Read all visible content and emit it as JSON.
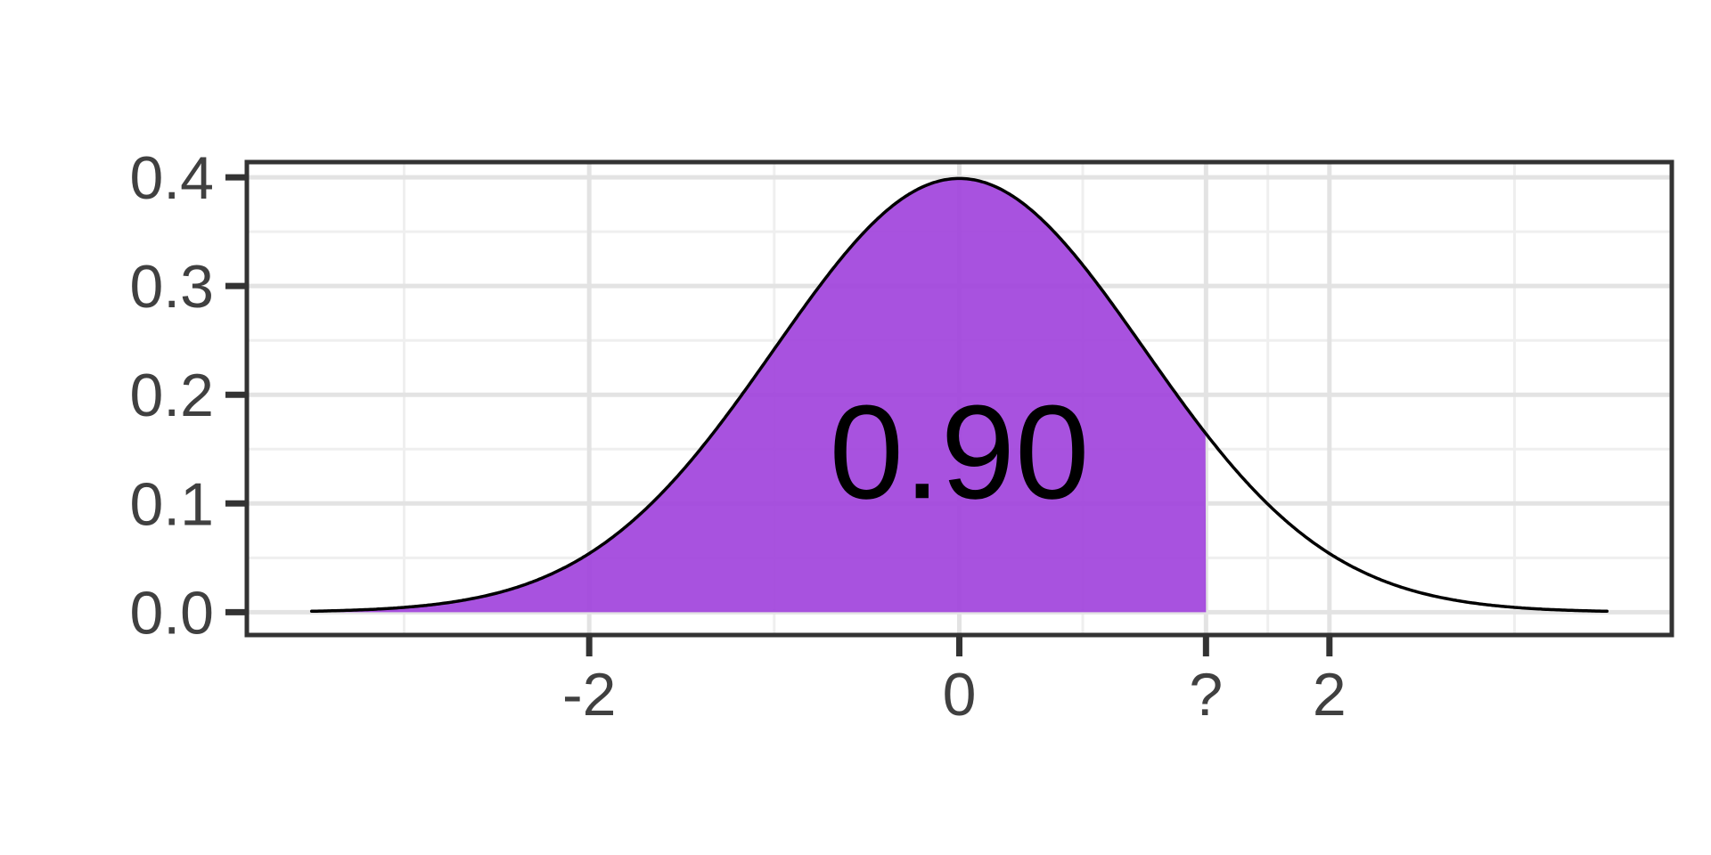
{
  "chart_data": {
    "type": "area",
    "title": "",
    "description": "Standard normal density curve with the lower-tail region shaded up to an unknown quantile marked '?' on the x-axis; shaded area equals 0.90",
    "distribution": {
      "name": "standard-normal",
      "mean": 0,
      "sd": 1,
      "peak_density": 0.3989
    },
    "curve_x_range": [
      -3.5,
      3.5
    ],
    "shaded_region": {
      "x_from": -3.5,
      "x_to": 1.333,
      "probability": 0.9,
      "probability_label": "0.90"
    },
    "annotation": {
      "text": "0.90",
      "x": 0,
      "y": 0.15
    },
    "x_axis": {
      "range": [
        -3.85,
        3.85
      ],
      "ticks": [
        {
          "v": -2,
          "label": "-2"
        },
        {
          "v": 0,
          "label": "0"
        },
        {
          "v": 1.333,
          "label": "?"
        },
        {
          "v": 2,
          "label": "2"
        }
      ],
      "minor_gridlines": [
        -3,
        -1,
        0.667,
        1.667,
        3
      ],
      "label": ""
    },
    "y_axis": {
      "range": [
        -0.021,
        0.414
      ],
      "ticks": [
        {
          "v": 0.0,
          "label": "0.0"
        },
        {
          "v": 0.1,
          "label": "0.1"
        },
        {
          "v": 0.2,
          "label": "0.2"
        },
        {
          "v": 0.3,
          "label": "0.3"
        },
        {
          "v": 0.4,
          "label": "0.4"
        }
      ],
      "minor_gridlines": [
        0.05,
        0.15,
        0.25,
        0.35
      ],
      "label": ""
    },
    "legend": null,
    "grid": "on",
    "style": {
      "background": "#FFFFFF",
      "panel_background": "#FFFFFF",
      "fill_color": "#9E3FDC",
      "fill_opacity": 0.9,
      "curve_color": "#000000",
      "grid_major_color": "#E3E3E3",
      "grid_minor_color": "#EFEFEF",
      "border_color": "#333333",
      "tick_color": "#333333",
      "axis_text_color": "#404040",
      "annotation_color": "#000000"
    }
  }
}
